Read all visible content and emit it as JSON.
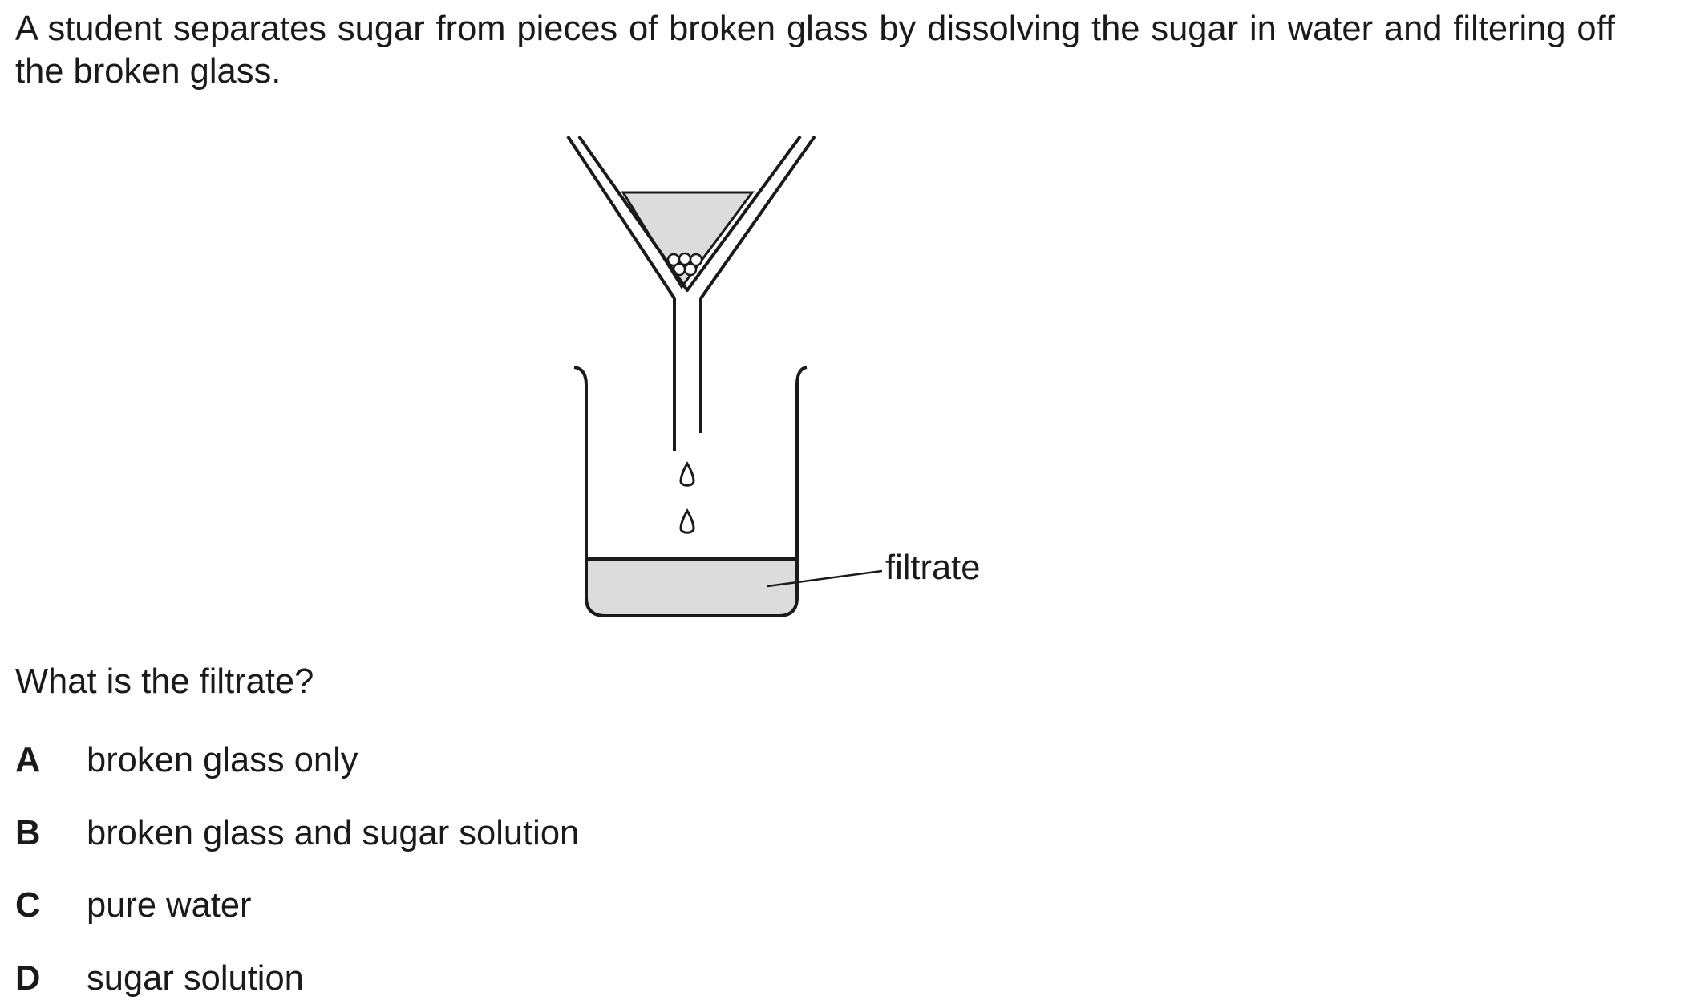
{
  "intro": "A student separates sugar from pieces of broken glass by dissolving the sugar in water and filtering off the broken glass.",
  "diagram": {
    "label": "filtrate",
    "fill_color": "#dcdcdc",
    "stroke_color": "#1a1a1a"
  },
  "question": "What is the filtrate?",
  "options": [
    {
      "letter": "A",
      "text": "broken glass only"
    },
    {
      "letter": "B",
      "text": "broken glass and sugar solution"
    },
    {
      "letter": "C",
      "text": "pure water"
    },
    {
      "letter": "D",
      "text": "sugar solution"
    }
  ]
}
